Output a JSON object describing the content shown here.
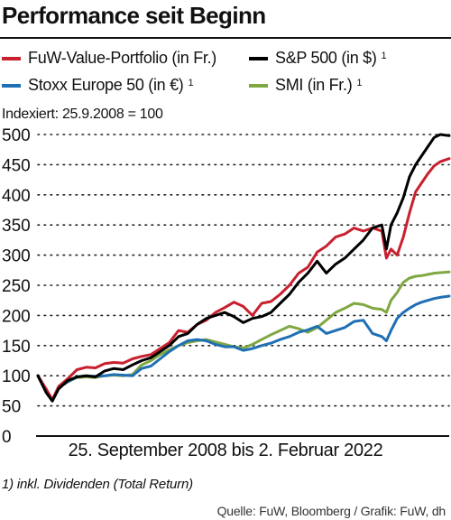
{
  "header": {
    "title": "Performance seit Beginn"
  },
  "legend_items": [
    {
      "label": "FuW-Value-Portfolio (in Fr.)",
      "footnote_mark": "",
      "color": "#c8202f"
    },
    {
      "label": "S&P 500 (in $)",
      "footnote_mark": "1",
      "color": "#000000"
    },
    {
      "label": "Stoxx Europe 50 (in €)",
      "footnote_mark": "1",
      "color": "#1f6fb5"
    },
    {
      "label": "SMI (in Fr.)",
      "footnote_mark": "1",
      "color": "#7fa843"
    }
  ],
  "index_note": "Indexiert: 25.9.2008 = 100",
  "x_range_label": "25. September 2008 bis 2. Februar 2022",
  "footnote": "1) inkl. Dividenden (Total Return)",
  "source": "Quelle: FuW, Bloomberg / Grafik: FuW, dh",
  "chart_data": {
    "type": "line",
    "title": "Performance seit Beginn",
    "xlabel": "25. September 2008 bis 2. Februar 2022",
    "ylabel": "Indexiert: 25.9.2008 = 100",
    "ylim": [
      0,
      500
    ],
    "yticks": [
      0,
      50,
      100,
      150,
      200,
      250,
      300,
      350,
      400,
      450,
      500
    ],
    "xlim": [
      2008.73,
      2022.09
    ],
    "grid": "horizontal dotted",
    "legend_position": "top",
    "x": [
      2008.73,
      2009.0,
      2009.2,
      2009.4,
      2009.7,
      2010.0,
      2010.3,
      2010.6,
      2010.9,
      2011.2,
      2011.5,
      2011.8,
      2012.1,
      2012.4,
      2012.7,
      2013.0,
      2013.3,
      2013.6,
      2013.9,
      2014.2,
      2014.5,
      2014.8,
      2015.1,
      2015.4,
      2015.7,
      2016.0,
      2016.3,
      2016.6,
      2016.9,
      2017.2,
      2017.5,
      2017.8,
      2018.1,
      2018.4,
      2018.7,
      2019.0,
      2019.3,
      2019.6,
      2019.9,
      2020.05,
      2020.2,
      2020.4,
      2020.6,
      2020.8,
      2021.0,
      2021.2,
      2021.4,
      2021.6,
      2021.8,
      2022.09
    ],
    "series": [
      {
        "name": "FuW-Value-Portfolio (in Fr.)",
        "color": "#c8202f",
        "values": [
          100,
          78,
          60,
          82,
          95,
          110,
          114,
          113,
          120,
          122,
          121,
          128,
          132,
          135,
          145,
          155,
          175,
          172,
          185,
          192,
          205,
          213,
          222,
          215,
          200,
          220,
          223,
          235,
          250,
          270,
          280,
          305,
          315,
          330,
          335,
          345,
          340,
          345,
          340,
          295,
          310,
          300,
          330,
          370,
          405,
          420,
          435,
          448,
          455,
          460
        ]
      },
      {
        "name": "S&P 500 (in $)",
        "color": "#000000",
        "values": [
          100,
          72,
          58,
          78,
          92,
          98,
          100,
          98,
          108,
          112,
          110,
          118,
          125,
          130,
          140,
          150,
          165,
          170,
          185,
          195,
          200,
          205,
          198,
          188,
          195,
          198,
          205,
          220,
          235,
          255,
          270,
          290,
          270,
          285,
          295,
          310,
          325,
          345,
          350,
          310,
          350,
          370,
          395,
          430,
          450,
          465,
          480,
          495,
          500,
          498
        ]
      },
      {
        "name": "Stoxx Europe 50 (in €)",
        "color": "#1f6fb5",
        "values": [
          100,
          76,
          60,
          80,
          90,
          98,
          100,
          99,
          100,
          102,
          101,
          100,
          112,
          116,
          128,
          140,
          150,
          158,
          160,
          158,
          152,
          148,
          148,
          142,
          145,
          150,
          154,
          160,
          165,
          172,
          176,
          182,
          170,
          175,
          180,
          190,
          192,
          170,
          165,
          158,
          175,
          195,
          205,
          212,
          218,
          222,
          225,
          228,
          230,
          232
        ]
      },
      {
        "name": "SMI (in Fr.)",
        "color": "#7fa843",
        "values": [
          100,
          75,
          60,
          80,
          90,
          97,
          98,
          97,
          100,
          101,
          100,
          102,
          118,
          125,
          135,
          143,
          150,
          155,
          158,
          160,
          156,
          152,
          148,
          146,
          152,
          160,
          168,
          175,
          182,
          178,
          172,
          180,
          192,
          205,
          212,
          220,
          218,
          212,
          210,
          205,
          225,
          238,
          255,
          262,
          265,
          266,
          268,
          270,
          271,
          272
        ]
      }
    ]
  }
}
